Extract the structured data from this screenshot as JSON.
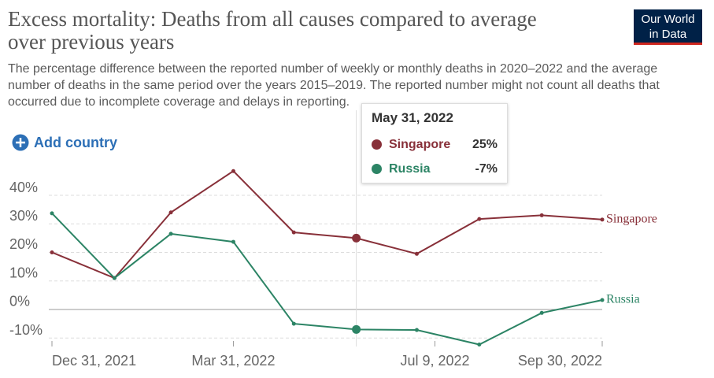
{
  "logo": [
    "Our World",
    "in Data"
  ],
  "add_country": "Add country",
  "chart_data": {
    "type": "line",
    "title": "Excess mortality: Deaths from all causes compared to average over previous years",
    "subtitle": "The percentage difference between the reported number of weekly or monthly deaths in 2020–2022 and the average number of deaths in the same period over the years 2015–2019. The reported number might not count all deaths that occurred due to incomplete coverage and delays in reporting.",
    "x": [
      "2021-12-31",
      "2022-01-31",
      "2022-02-28",
      "2022-03-31",
      "2022-04-30",
      "2022-05-31",
      "2022-06-30",
      "2022-07-31",
      "2022-08-31",
      "2022-09-30"
    ],
    "xlim": [
      "2021-12-31",
      "2022-09-30"
    ],
    "xticks": [
      {
        "value": "2021-12-31",
        "label": "Dec 31, 2021"
      },
      {
        "value": "2022-03-31",
        "label": "Mar 31, 2022"
      },
      {
        "value": "2022-07-09",
        "label": "Jul 9, 2022"
      },
      {
        "value": "2022-09-30",
        "label": "Sep 30, 2022"
      }
    ],
    "ylim": [
      -12.5,
      44
    ],
    "yticks": [
      {
        "value": -10,
        "label": "-10%"
      },
      {
        "value": 0,
        "label": "0%"
      },
      {
        "value": 10,
        "label": "10%"
      },
      {
        "value": 20,
        "label": "20%"
      },
      {
        "value": 30,
        "label": "30%"
      },
      {
        "value": 40,
        "label": "40%"
      }
    ],
    "grid": true,
    "series": [
      {
        "name": "Singapore",
        "color": "#883039",
        "values": [
          20,
          11,
          34,
          48.5,
          27,
          25,
          19.5,
          31.7,
          33,
          31.5
        ]
      },
      {
        "name": "Russia",
        "color": "#2c8465",
        "values": [
          33.7,
          11,
          26.5,
          23.7,
          -5,
          -7,
          -7.2,
          -12.3,
          -1.2,
          3.3
        ]
      }
    ],
    "tooltip": {
      "x": "2022-05-31",
      "title": "May 31, 2022",
      "value_labels": [
        "25%",
        "-7%"
      ]
    }
  }
}
